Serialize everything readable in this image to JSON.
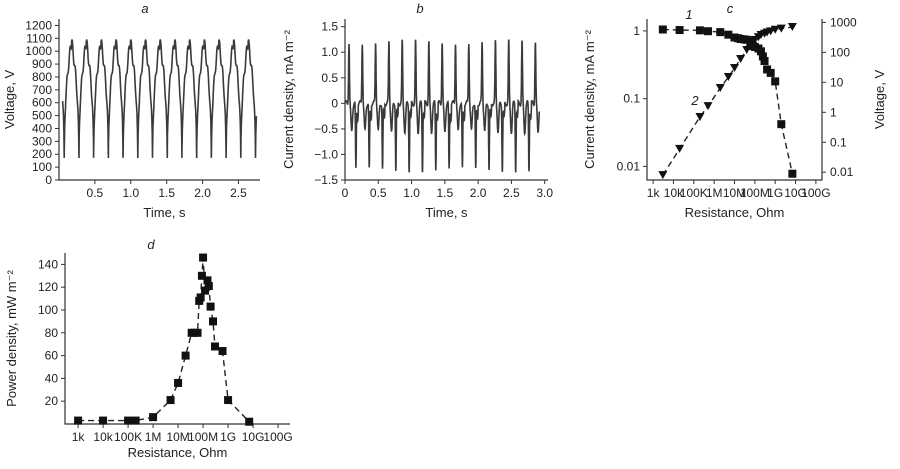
{
  "chart_data": [
    {
      "panel": "a",
      "type": "line",
      "xlabel": "Time, s",
      "ylabel": "Voltage, V",
      "xlim": [
        0,
        2.8
      ],
      "ylim": [
        0,
        1250
      ],
      "xticks": [
        "0.5",
        "1.0",
        "1.5",
        "2.0",
        "2.5"
      ],
      "xtick_values": [
        0.5,
        1.0,
        1.5,
        2.0,
        2.5
      ],
      "yticks": [
        "0",
        "100",
        "200",
        "300",
        "400",
        "500",
        "600",
        "700",
        "800",
        "900",
        "1000",
        "1100",
        "1200"
      ],
      "ytick_values": [
        0,
        100,
        200,
        300,
        400,
        500,
        600,
        700,
        800,
        900,
        1000,
        1100,
        1200
      ],
      "signal": {
        "form": "periodic peaks",
        "period_s": 0.205,
        "t_start": 0.05,
        "t_end": 2.75,
        "min": 0,
        "max": 1120,
        "first_trough_s": 0.175
      }
    },
    {
      "panel": "b",
      "type": "line",
      "xlabel": "Time, s",
      "ylabel": "Current density, mA m⁻²",
      "xlim": [
        0,
        3.05
      ],
      "ylim": [
        -1.5,
        1.65
      ],
      "xticks": [
        "0",
        "0.5",
        "1.0",
        "1.5",
        "2.0",
        "2.5",
        "3.0"
      ],
      "xtick_values": [
        0,
        0.5,
        1.0,
        1.5,
        2.0,
        2.5,
        3.0
      ],
      "yticks": [
        "−1.5",
        "−1.0",
        "−0.5",
        "0",
        "0.5",
        "1.0",
        "1.5"
      ],
      "ytick_values": [
        -1.5,
        -1.0,
        -0.5,
        0,
        0.5,
        1.0,
        1.5
      ],
      "signal": {
        "form": "alternating pulses",
        "period_s": 0.2,
        "t_start": 0,
        "t_end": 2.92,
        "max": 1.2,
        "min": -1.3
      }
    },
    {
      "panel": "c",
      "type": "scatter",
      "xlabel": "Resistance, Ohm",
      "ylabel": "Current density, mA m⁻²",
      "ylabel2": "Voltage, V",
      "x_scale": "log",
      "y_scale": "log",
      "xticks": [
        "1k",
        "10k",
        "100K",
        "1M",
        "10M",
        "100M",
        "1G",
        "10G",
        "100G"
      ],
      "xtick_values": [
        1000,
        10000,
        100000,
        1000000,
        10000000,
        100000000,
        1000000000,
        10000000000,
        100000000000
      ],
      "yticks": [
        "0.01",
        "0.1",
        "1"
      ],
      "ytick_values": [
        0.01,
        0.1,
        1
      ],
      "yticks2": [
        "0.01",
        "0.1",
        "1",
        "10",
        "100",
        "1000"
      ],
      "ytick_values2": [
        0.01,
        0.1,
        1,
        10,
        100,
        1000
      ],
      "xlim": [
        500,
        200000000000
      ],
      "ylim": [
        0.0063,
        1.5
      ],
      "ylim2": [
        0.0055,
        1300
      ],
      "series": [
        {
          "name": "1",
          "marker": "square",
          "axis": "left",
          "x": [
            3000,
            20000,
            200000,
            500000,
            2000000,
            5000000,
            10000000,
            15000000,
            20000000,
            30000000,
            40000000,
            60000000,
            80000000,
            100000000,
            150000000,
            200000000,
            250000000,
            300000000,
            400000000,
            600000000,
            1000000000,
            2000000000,
            7000000000
          ],
          "y": [
            1.05,
            1.03,
            1.02,
            0.99,
            0.96,
            0.88,
            0.8,
            0.78,
            0.76,
            0.75,
            0.74,
            0.66,
            0.6,
            0.58,
            0.55,
            0.5,
            0.42,
            0.36,
            0.27,
            0.24,
            0.18,
            0.042,
            0.0078
          ]
        },
        {
          "name": "2",
          "marker": "triangle",
          "axis": "right",
          "x": [
            3000,
            20000,
            200000,
            500000,
            2000000,
            5000000,
            10000000,
            20000000,
            40000000,
            60000000,
            80000000,
            100000000,
            150000000,
            200000000,
            300000000,
            400000000,
            600000000,
            1000000000,
            2000000000,
            7000000000
          ],
          "y": [
            0.008,
            0.06,
            0.7,
            1.6,
            6.5,
            15,
            30,
            60,
            120,
            170,
            230,
            260,
            320,
            380,
            420,
            460,
            500,
            570,
            620,
            700
          ]
        }
      ]
    },
    {
      "panel": "d",
      "type": "scatter",
      "xlabel": "Resistance, Ohm",
      "ylabel": "Power density, mW m⁻²",
      "x_scale": "log",
      "xticks": [
        "1k",
        "10k",
        "100K",
        "1M",
        "10M",
        "100M",
        "1G",
        "10G",
        "100G"
      ],
      "xtick_values": [
        1000,
        10000,
        100000,
        1000000,
        10000000,
        100000000,
        1000000000,
        10000000000,
        100000000000
      ],
      "yticks": [
        "20",
        "40",
        "60",
        "80",
        "100",
        "120",
        "140"
      ],
      "ytick_values": [
        20,
        40,
        60,
        80,
        100,
        120,
        140
      ],
      "xlim": [
        300,
        300000000000
      ],
      "ylim": [
        0,
        150
      ],
      "series": [
        {
          "name": "",
          "marker": "square",
          "x": [
            1000,
            10000,
            100000,
            200000,
            1000000,
            5000000,
            10000000,
            20000000,
            35000000,
            45000000,
            60000000,
            70000000,
            80000000,
            90000000,
            100000000,
            120000000,
            150000000,
            170000000,
            200000000,
            250000000,
            300000000,
            600000000,
            1000000000,
            7000000000
          ],
          "y": [
            3,
            3,
            3,
            3,
            6,
            21,
            36,
            60,
            80,
            80,
            80,
            108,
            111,
            130,
            146,
            117,
            126,
            121,
            103,
            90,
            68,
            64,
            21,
            2
          ]
        }
      ]
    }
  ],
  "panel_labels": {
    "a": "a",
    "b": "b",
    "c": "c",
    "d": "d"
  },
  "series_labels": {
    "one": "1",
    "two": "2"
  }
}
